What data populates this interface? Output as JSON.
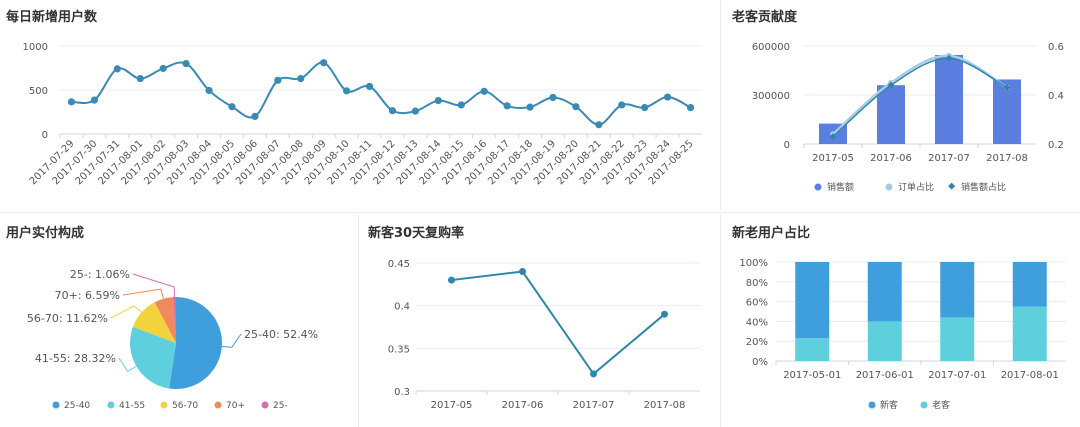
{
  "colors": {
    "line_blue": "#3a8ab3",
    "bar_blue": "#5b7fe0",
    "light_blue": "#a9cbe6",
    "teal_line": "#2e86ab",
    "pie": [
      "#3f9fdd",
      "#5ed0dd",
      "#f2d33c",
      "#f08a5d",
      "#d86eb0"
    ],
    "stack_new": "#3f9fdd",
    "stack_old": "#5ed0dd"
  },
  "panels": {
    "daily": {
      "title": "每日新增用户数"
    },
    "contribution": {
      "title": "老客贡献度"
    },
    "composition": {
      "title": "用户实付构成"
    },
    "repurchase": {
      "title": "新客30天复购率"
    },
    "ratio": {
      "title": "新老用户占比"
    }
  },
  "chart_data": [
    {
      "type": "line",
      "title": "每日新增用户数",
      "x": [
        "2017-07-29",
        "2017-07-30",
        "2017-07-31",
        "2017-08-01",
        "2017-08-02",
        "2017-08-03",
        "2017-08-04",
        "2017-08-05",
        "2017-08-06",
        "2017-08-07",
        "2017-08-08",
        "2017-08-09",
        "2017-08-10",
        "2017-08-11",
        "2017-08-12",
        "2017-08-13",
        "2017-08-14",
        "2017-08-15",
        "2017-08-16",
        "2017-08-17",
        "2017-08-18",
        "2017-08-19",
        "2017-08-20",
        "2017-08-21",
        "2017-08-22",
        "2017-08-23",
        "2017-08-24",
        "2017-08-25"
      ],
      "values": [
        365,
        385,
        740,
        630,
        745,
        800,
        495,
        310,
        200,
        610,
        630,
        810,
        490,
        540,
        265,
        260,
        380,
        330,
        485,
        320,
        305,
        415,
        310,
        105,
        330,
        300,
        420,
        300
      ],
      "yticks": [
        "0",
        "500",
        "1000"
      ],
      "ylim": [
        0,
        1000
      ],
      "smooth": true
    },
    {
      "type": "bar",
      "title": "老客贡献度",
      "categories": [
        "2017-05",
        "2017-06",
        "2017-07",
        "2017-08"
      ],
      "series": [
        {
          "name": "销售额",
          "type": "bar",
          "values": [
            125000,
            360000,
            545000,
            395000
          ]
        },
        {
          "name": "订单占比",
          "type": "line",
          "axis": "right",
          "values": [
            0.24,
            0.45,
            0.56,
            0.43
          ]
        },
        {
          "name": "销售额占比",
          "type": "line",
          "axis": "right",
          "values": [
            0.23,
            0.44,
            0.55,
            0.43
          ]
        }
      ],
      "yticks_left": [
        "0",
        "300000",
        "600000"
      ],
      "ylim_left": [
        0,
        600000
      ],
      "yticks_right": [
        "0.2",
        "0.4",
        "0.6"
      ],
      "ylim_right": [
        0.2,
        0.6
      ],
      "legend_position": "bottom"
    },
    {
      "type": "pie",
      "title": "用户实付构成",
      "slices": [
        {
          "name": "25-40",
          "value": 52.4,
          "label": "25-40: 52.4%"
        },
        {
          "name": "41-55",
          "value": 28.32,
          "label": "41-55: 28.32%"
        },
        {
          "name": "56-70",
          "value": 11.62,
          "label": "56-70: 11.62%"
        },
        {
          "name": "70+",
          "value": 6.59,
          "label": "70+: 6.59%"
        },
        {
          "name": "25-",
          "value": 1.06,
          "label": "25-: 1.06%"
        }
      ],
      "legend_position": "bottom"
    },
    {
      "type": "line",
      "title": "新客30天复购率",
      "categories": [
        "2017-05",
        "2017-06",
        "2017-07",
        "2017-08"
      ],
      "values": [
        0.43,
        0.44,
        0.32,
        0.39
      ],
      "yticks": [
        "0.3",
        "0.35",
        "0.4",
        "0.45"
      ],
      "ylim": [
        0.3,
        0.45
      ]
    },
    {
      "type": "bar",
      "title": "新老用户占比",
      "stacked": true,
      "categories": [
        "2017-05-01",
        "2017-06-01",
        "2017-07-01",
        "2017-08-01"
      ],
      "series": [
        {
          "name": "新客",
          "values": [
            0.77,
            0.6,
            0.56,
            0.45
          ]
        },
        {
          "name": "老客",
          "values": [
            0.23,
            0.4,
            0.44,
            0.55
          ]
        }
      ],
      "yticks": [
        "0%",
        "20%",
        "40%",
        "60%",
        "80%",
        "100%"
      ],
      "ylim": [
        0,
        1
      ],
      "legend_position": "bottom"
    }
  ]
}
